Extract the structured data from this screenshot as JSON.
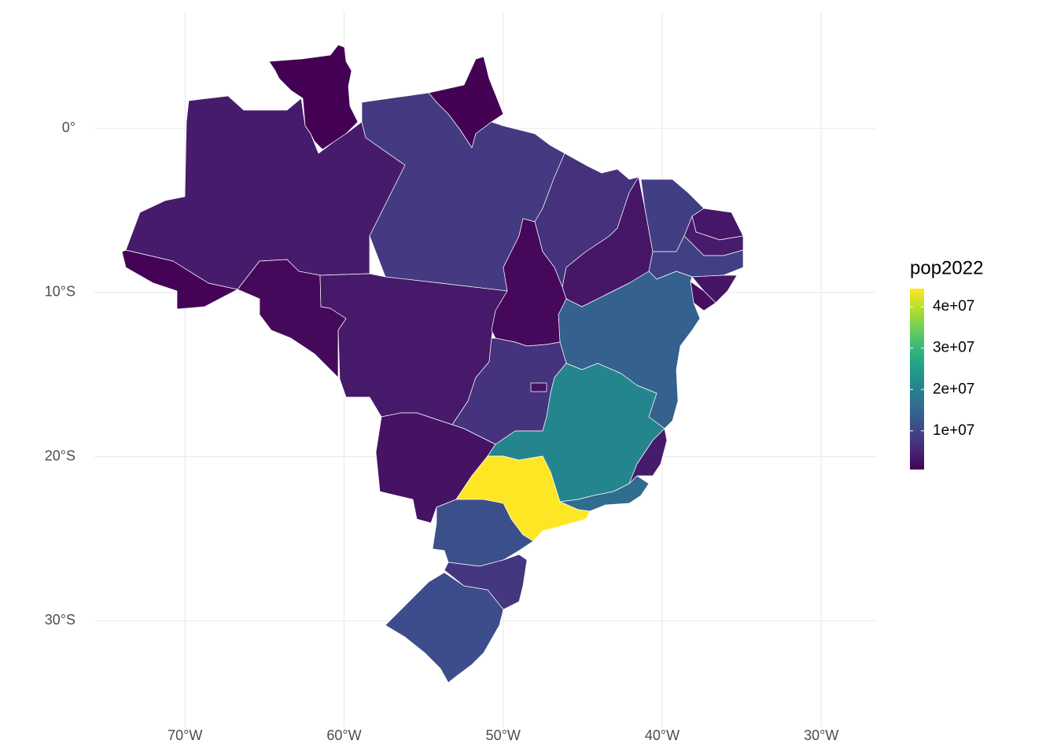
{
  "chart_data": {
    "type": "choropleth",
    "values": [
      636000,
      733000,
      3940000,
      830000,
      1580000,
      8120000,
      3660000,
      6780000,
      3270000,
      8790000,
      3300000,
      3970000,
      9060000,
      3130000,
      2210000,
      14140000,
      1510000,
      7060000,
      2820000,
      2760000,
      20540000,
      3830000,
      16050000,
      44410000,
      11440000,
      7610000,
      10880000
    ],
    "colormap": "viridis",
    "legend_title": "pop2022",
    "clim": [
      636000,
      44410000
    ],
    "cticks": [
      {
        "value": 10000000,
        "label": "1e+07"
      },
      {
        "value": 20000000,
        "label": "2e+07"
      },
      {
        "value": 30000000,
        "label": "3e+07"
      },
      {
        "value": 40000000,
        "label": "4e+07"
      }
    ],
    "xlim": [
      -75.7,
      -26.6
    ],
    "ylim": [
      -36.5,
      7.1
    ],
    "xticks": [
      {
        "value": -70,
        "label": "70°W"
      },
      {
        "value": -60,
        "label": "60°W"
      },
      {
        "value": -50,
        "label": "50°W"
      },
      {
        "value": -40,
        "label": "40°W"
      },
      {
        "value": -30,
        "label": "30°W"
      }
    ],
    "yticks": [
      {
        "value": 0,
        "label": "0°"
      },
      {
        "value": -10,
        "label": "10°S"
      },
      {
        "value": -20,
        "label": "20°S"
      },
      {
        "value": -30,
        "label": "30°S"
      }
    ],
    "grid": true
  }
}
